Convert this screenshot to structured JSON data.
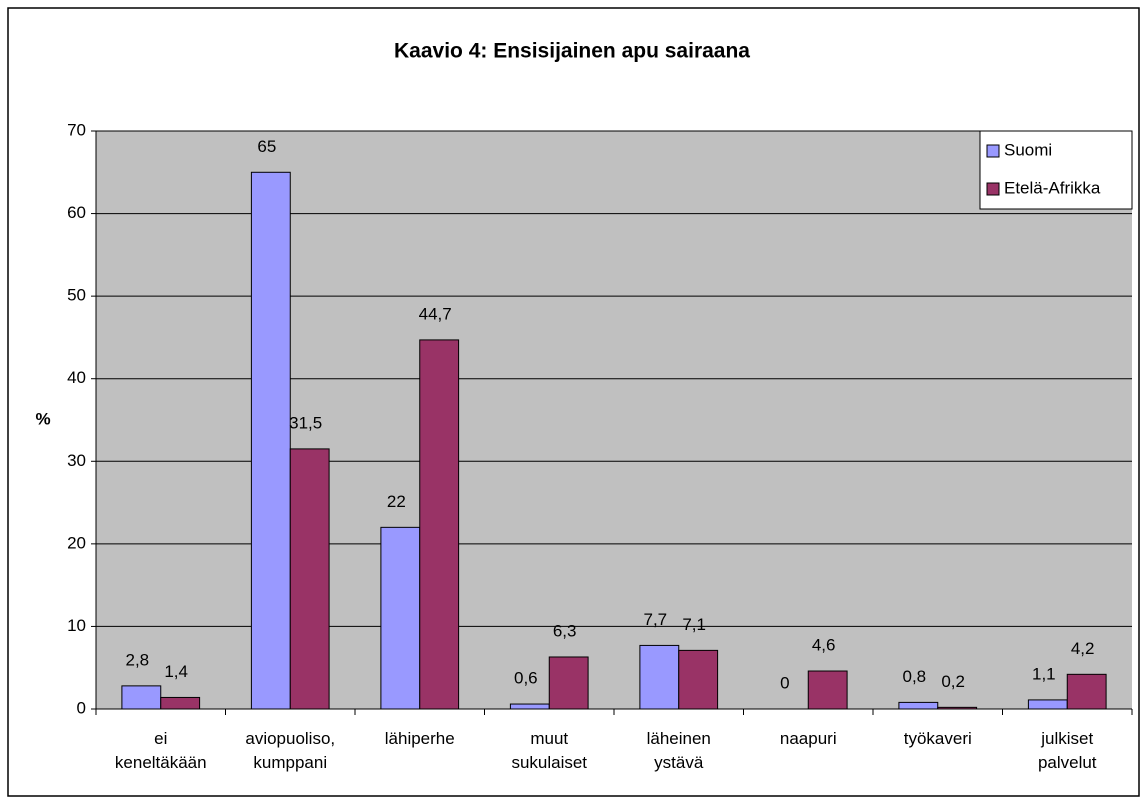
{
  "chart_data": {
    "type": "bar",
    "title": "Kaavio 4: Ensisijainen apu sairaana",
    "ylabel": "%",
    "categories": [
      "ei\nkeneltäkään",
      "aviopuoliso,\nkumppani",
      "lähiperhe",
      "muut\nsukulaiset",
      "läheinen\nystävä",
      "naapuri",
      "työkaveri",
      "julkiset\npalvelut"
    ],
    "series": [
      {
        "name": "Suomi",
        "color": "#9999ff",
        "values": [
          2.8,
          65,
          22,
          0.6,
          7.7,
          0,
          0.8,
          1.1
        ],
        "value_labels": [
          "2,8",
          "65",
          "22",
          "0,6",
          "7,7",
          "0",
          "0,8",
          "1,1"
        ]
      },
      {
        "name": "Etelä-Afrikka",
        "color": "#993366",
        "values": [
          1.4,
          31.5,
          44.7,
          6.3,
          7.1,
          4.6,
          0.2,
          4.2
        ],
        "value_labels": [
          "1,4",
          "31,5",
          "44,7",
          "6,3",
          "7,1",
          "4,6",
          "0,2",
          "4,2"
        ]
      }
    ],
    "ylim": [
      0,
      70
    ],
    "yticks": [
      0,
      10,
      20,
      30,
      40,
      50,
      60,
      70
    ],
    "grid": true,
    "legend": "top-right"
  }
}
